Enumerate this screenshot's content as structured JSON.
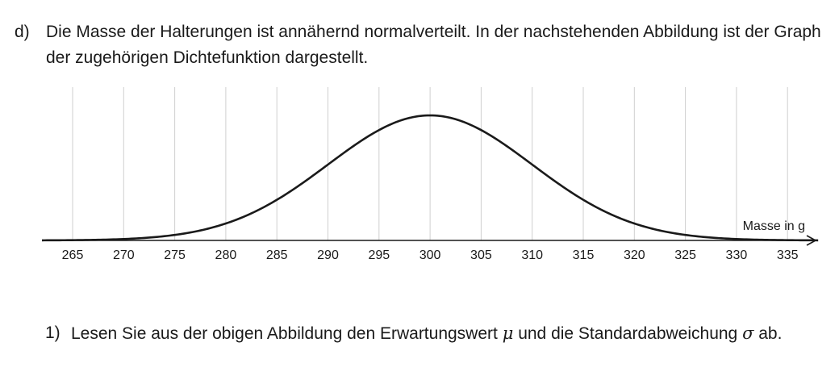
{
  "task": {
    "label": "d)",
    "text": "Die Masse der Halterungen ist annähernd normalverteilt. In der nachstehenden Abbildung ist der Graph der zugehörigen Dichtefunktion dargestellt."
  },
  "chart_data": {
    "type": "line",
    "function": "normal-density",
    "mu": 300,
    "sigma": 10,
    "xlabel": "Masse in g",
    "ylabel": "",
    "title": "",
    "x_ticks": [
      265,
      270,
      275,
      280,
      285,
      290,
      295,
      300,
      305,
      310,
      315,
      320,
      325,
      330,
      335
    ],
    "xlim": [
      262,
      338
    ],
    "grid": "vertical",
    "line_color": "#1a1a1a",
    "grid_color": "#cfcfcf"
  },
  "subtask": {
    "label": "1)",
    "text_1": "Lesen Sie aus der obigen Abbildung den Erwartungswert ",
    "mu_symbol": "μ",
    "text_2": " und die Standardabweichung ",
    "sigma_symbol": "σ",
    "text_3": " ab."
  }
}
